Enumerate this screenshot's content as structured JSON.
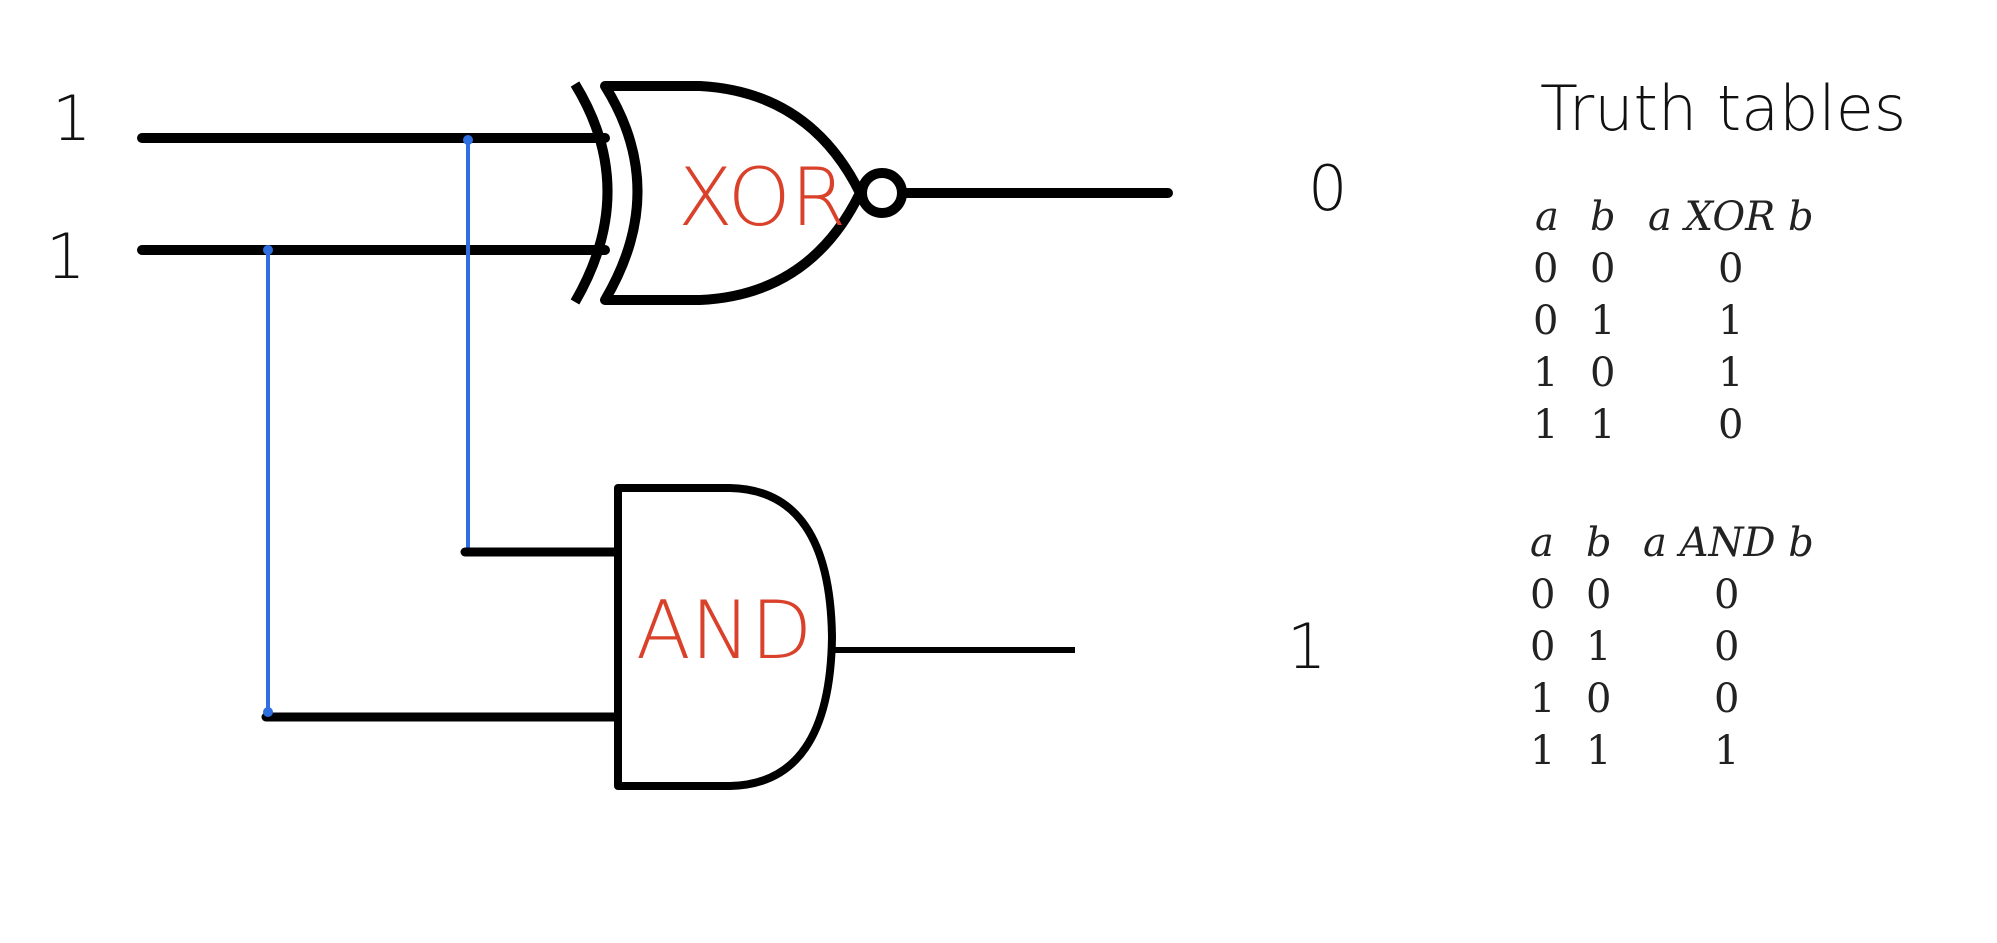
{
  "inputs": {
    "a_value": "1",
    "b_value": "1"
  },
  "gates": {
    "xor_label": "XOR",
    "and_label": "AND"
  },
  "outputs": {
    "xor_output": "0",
    "and_output": "1"
  },
  "truth_tables": {
    "title": "Truth tables",
    "xor": {
      "headers": [
        "a",
        "b",
        "a XOR b"
      ],
      "rows": [
        [
          "0",
          "0",
          "0"
        ],
        [
          "0",
          "1",
          "1"
        ],
        [
          "1",
          "0",
          "1"
        ],
        [
          "1",
          "1",
          "0"
        ]
      ]
    },
    "and": {
      "headers": [
        "a",
        "b",
        "a AND b"
      ],
      "rows": [
        [
          "0",
          "0",
          "0"
        ],
        [
          "0",
          "1",
          "0"
        ],
        [
          "1",
          "0",
          "0"
        ],
        [
          "1",
          "1",
          "1"
        ]
      ]
    }
  },
  "colors": {
    "wire": "#000000",
    "junction_wire": "#2f6fe0",
    "gate_label": "#d9412b"
  }
}
